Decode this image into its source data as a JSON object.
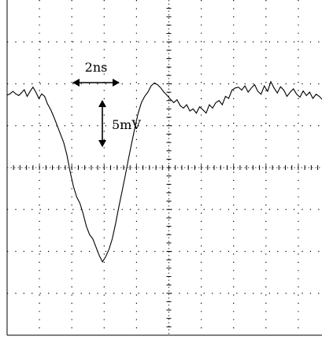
{
  "chart_data": {
    "type": "line",
    "grid": true,
    "x_divisions": 10,
    "y_divisions": 8,
    "annotations": {
      "time_scale": "2ns",
      "voltage_scale": "5mV"
    },
    "series": [
      {
        "x": [
          0,
          0.09,
          0.18,
          0.27,
          0.36,
          0.45,
          0.53,
          0.62,
          0.71,
          0.8,
          0.89,
          0.98,
          1.07,
          1.16,
          1.25,
          1.35,
          1.45,
          1.55,
          1.65,
          1.75,
          1.85,
          1.95,
          2.05,
          2.15,
          2.25,
          2.35,
          2.45,
          2.55,
          2.65,
          2.75,
          2.85,
          2.95,
          3.05,
          3.15,
          3.25,
          3.35,
          3.45,
          3.55,
          3.65,
          3.75,
          3.85,
          3.95,
          4.05,
          4.15,
          4.25,
          4.35,
          4.45,
          4.55,
          4.65,
          4.75,
          4.85,
          4.95,
          5.05,
          5.15,
          5.25,
          5.35,
          5.45,
          5.55,
          5.65,
          5.75,
          5.85,
          5.95,
          6.05,
          6.15,
          6.25,
          6.35,
          6.45,
          6.55,
          6.65,
          6.75,
          6.85,
          6.95,
          7.05,
          7.15,
          7.25,
          7.35,
          7.45,
          7.55,
          7.65,
          7.75,
          7.85,
          7.95,
          8.05,
          8.15,
          8.25,
          8.35,
          8.45,
          8.55,
          8.65,
          8.75,
          8.85,
          8.95,
          9.05,
          9.15,
          9.25,
          9.35,
          9.45,
          9.55,
          9.65,
          9.75,
          9.85,
          9.95
        ],
        "y": [
          1.73,
          1.76,
          1.82,
          1.76,
          1.72,
          1.79,
          1.86,
          1.7,
          1.82,
          1.92,
          1.8,
          1.65,
          1.76,
          1.7,
          1.52,
          1.38,
          1.2,
          1.0,
          0.8,
          0.6,
          0.3,
          -0.1,
          -0.45,
          -0.7,
          -0.85,
          -1.1,
          -1.4,
          -1.6,
          -1.7,
          -1.9,
          -2.1,
          -2.25,
          -2.12,
          -1.95,
          -1.7,
          -1.35,
          -0.95,
          -0.58,
          -0.2,
          0.2,
          0.58,
          0.95,
          1.3,
          1.55,
          1.7,
          1.8,
          1.95,
          2.02,
          1.98,
          1.9,
          1.8,
          1.72,
          1.63,
          1.55,
          1.62,
          1.48,
          1.42,
          1.5,
          1.35,
          1.4,
          1.3,
          1.45,
          1.38,
          1.3,
          1.5,
          1.42,
          1.55,
          1.6,
          1.5,
          1.7,
          1.65,
          1.85,
          1.9,
          1.92,
          1.85,
          1.95,
          1.8,
          1.9,
          1.98,
          1.82,
          1.75,
          1.95,
          1.82,
          2.05,
          1.9,
          1.78,
          1.93,
          1.85,
          1.7,
          1.8,
          1.88,
          1.75,
          1.68,
          1.83,
          1.72,
          1.8,
          1.65,
          1.75,
          1.7,
          1.62,
          1.72,
          1.68
        ]
      }
    ]
  }
}
